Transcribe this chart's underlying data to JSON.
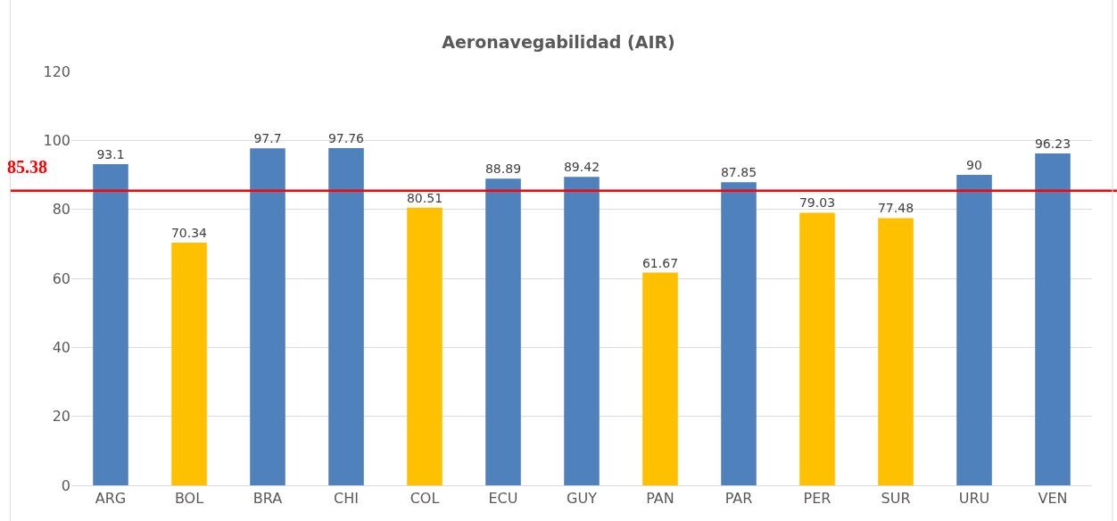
{
  "chart_data": {
    "type": "bar",
    "title": "Aeronavegabilidad (AIR)",
    "categories": [
      "ARG",
      "BOL",
      "BRA",
      "CHI",
      "COL",
      "ECU",
      "GUY",
      "PAN",
      "PAR",
      "PER",
      "SUR",
      "URU",
      "VEN"
    ],
    "values": [
      93.1,
      70.34,
      97.7,
      97.76,
      80.51,
      88.89,
      89.42,
      61.67,
      87.85,
      79.03,
      77.48,
      90,
      96.23
    ],
    "colors": [
      "#4f81bd",
      "#ffc000",
      "#4f81bd",
      "#4f81bd",
      "#ffc000",
      "#4f81bd",
      "#4f81bd",
      "#ffc000",
      "#4f81bd",
      "#ffc000",
      "#ffc000",
      "#4f81bd",
      "#4f81bd"
    ],
    "ylim": [
      0,
      120
    ],
    "yticks": [
      0,
      20,
      40,
      60,
      80,
      100,
      120
    ],
    "grid": "y",
    "data_labels": true,
    "ref_lines": [
      {
        "axis": "y",
        "value": 85.38,
        "label": "85.38",
        "color": "#ff0000"
      }
    ]
  }
}
